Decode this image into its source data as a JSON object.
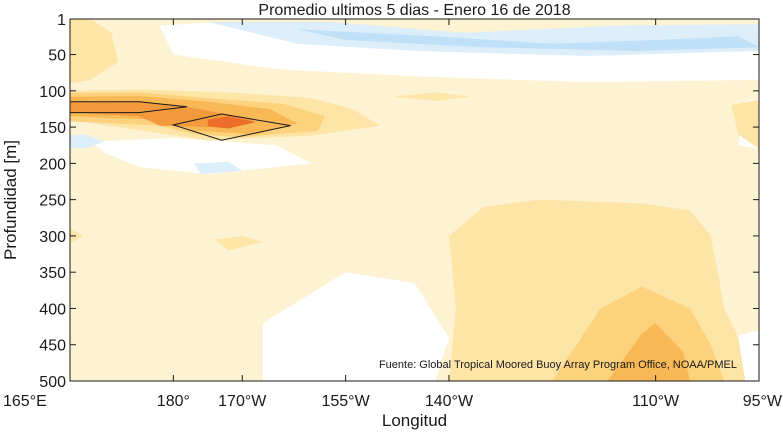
{
  "chart_data": {
    "type": "heatmap",
    "title": "Promedio ultimos 5 dias - Enero 16 de 2018",
    "xlabel": "Longitud",
    "ylabel": "Profundidad [m]",
    "source": "Fuente: Global Tropical Moored Buoy Array Program Office, NOAA/PMEL",
    "x_ticks": [
      {
        "lon": 165,
        "label": "165°E"
      },
      {
        "lon": 180,
        "label": "180°"
      },
      {
        "lon": 190,
        "label": "170°W"
      },
      {
        "lon": 205,
        "label": "155°W"
      },
      {
        "lon": 220,
        "label": "140°W"
      },
      {
        "lon": 250,
        "label": "110°W"
      },
      {
        "lon": 265,
        "label": "95°W"
      }
    ],
    "y_ticks": [
      {
        "depth": 1,
        "label": "1"
      },
      {
        "depth": 50,
        "label": "50"
      },
      {
        "depth": 100,
        "label": "100"
      },
      {
        "depth": 150,
        "label": "150"
      },
      {
        "depth": 200,
        "label": "200"
      },
      {
        "depth": 250,
        "label": "250"
      },
      {
        "depth": 300,
        "label": "300"
      },
      {
        "depth": 350,
        "label": "350"
      },
      {
        "depth": 400,
        "label": "400"
      },
      {
        "depth": 450,
        "label": "450"
      },
      {
        "depth": 500,
        "label": "500"
      }
    ],
    "xlim": [
      165,
      265
    ],
    "ylim": [
      500,
      1
    ],
    "levels": [
      {
        "value": -2,
        "color": "#bfe0f7"
      },
      {
        "value": -1,
        "color": "#ddeefb"
      },
      {
        "value": 0,
        "color": "#ffffff"
      },
      {
        "value": 1,
        "color": "#fdf2d2"
      },
      {
        "value": 2,
        "color": "#fde5a8"
      },
      {
        "value": 3,
        "color": "#fcd27c"
      },
      {
        "value": 4,
        "color": "#f9b856"
      },
      {
        "value": 5,
        "color": "#f39a3c"
      },
      {
        "value": 6,
        "color": "#ec6e2b"
      }
    ],
    "regions": [
      {
        "level": 1,
        "points": [
          [
            165,
            1
          ],
          [
            265,
            1
          ],
          [
            265,
            500
          ],
          [
            165,
            500
          ]
        ]
      },
      {
        "level": 0,
        "points": [
          [
            178,
            10
          ],
          [
            187,
            5
          ],
          [
            205,
            15
          ],
          [
            220,
            30
          ],
          [
            240,
            22
          ],
          [
            258,
            12
          ],
          [
            265,
            15
          ],
          [
            265,
            85
          ],
          [
            240,
            88
          ],
          [
            215,
            80
          ],
          [
            195,
            70
          ],
          [
            180,
            50
          ]
        ]
      },
      {
        "level": -1,
        "points": [
          [
            185,
            5
          ],
          [
            203,
            5
          ],
          [
            222,
            20
          ],
          [
            245,
            10
          ],
          [
            265,
            8
          ],
          [
            265,
            45
          ],
          [
            240,
            52
          ],
          [
            215,
            45
          ],
          [
            198,
            35
          ]
        ]
      },
      {
        "level": -2,
        "points": [
          [
            198,
            15
          ],
          [
            218,
            25
          ],
          [
            235,
            35
          ],
          [
            250,
            30
          ],
          [
            262,
            25
          ],
          [
            265,
            40
          ],
          [
            248,
            45
          ],
          [
            225,
            40
          ],
          [
            205,
            30
          ]
        ]
      },
      {
        "level": 0,
        "points": [
          [
            263,
            115
          ],
          [
            265,
            110
          ],
          [
            265,
            180
          ],
          [
            262,
            175
          ]
        ]
      },
      {
        "level": 0,
        "points": [
          [
            168,
            170
          ],
          [
            180,
            165
          ],
          [
            195,
            175
          ],
          [
            200,
            200
          ],
          [
            185,
            215
          ],
          [
            175,
            205
          ],
          [
            170,
            185
          ]
        ]
      },
      {
        "level": -1,
        "points": [
          [
            167,
            160
          ],
          [
            170,
            170
          ],
          [
            167,
            180
          ],
          [
            165,
            178
          ],
          [
            165,
            162
          ]
        ]
      },
      {
        "level": -1,
        "points": [
          [
            183,
            200
          ],
          [
            188,
            198
          ],
          [
            190,
            210
          ],
          [
            184,
            215
          ]
        ]
      },
      {
        "level": 0,
        "points": [
          [
            193,
            420
          ],
          [
            205,
            350
          ],
          [
            215,
            365
          ],
          [
            220,
            440
          ],
          [
            218,
            500
          ],
          [
            193,
            500
          ]
        ]
      },
      {
        "level": 0,
        "points": [
          [
            261,
            440
          ],
          [
            265,
            430
          ],
          [
            265,
            500
          ],
          [
            260,
            500
          ]
        ]
      },
      {
        "level": 2,
        "points": [
          [
            165,
            1
          ],
          [
            168,
            1
          ],
          [
            171,
            20
          ],
          [
            172,
            60
          ],
          [
            168,
            85
          ],
          [
            165,
            90
          ]
        ]
      },
      {
        "level": 2,
        "points": [
          [
            165,
            100
          ],
          [
            175,
            98
          ],
          [
            190,
            103
          ],
          [
            200,
            110
          ],
          [
            206,
            125
          ],
          [
            210,
            148
          ],
          [
            200,
            162
          ],
          [
            185,
            168
          ],
          [
            172,
            150
          ],
          [
            165,
            140
          ]
        ]
      },
      {
        "level": 2,
        "points": [
          [
            212,
            108
          ],
          [
            218,
            102
          ],
          [
            223,
            108
          ],
          [
            218,
            114
          ]
        ]
      },
      {
        "level": 2,
        "points": [
          [
            261,
            120
          ],
          [
            265,
            112
          ],
          [
            265,
            180
          ],
          [
            262,
            160
          ]
        ]
      },
      {
        "level": 2,
        "points": [
          [
            165,
            290
          ],
          [
            167,
            300
          ],
          [
            165,
            310
          ]
        ]
      },
      {
        "level": 2,
        "points": [
          [
            186,
            305
          ],
          [
            190,
            300
          ],
          [
            193,
            308
          ],
          [
            188,
            320
          ]
        ]
      },
      {
        "level": 2,
        "points": [
          [
            220,
            300
          ],
          [
            225,
            260
          ],
          [
            233,
            250
          ],
          [
            248,
            255
          ],
          [
            255,
            265
          ],
          [
            258,
            300
          ],
          [
            260,
            400
          ],
          [
            262,
            440
          ],
          [
            263,
            500
          ],
          [
            220,
            500
          ],
          [
            221,
            400
          ]
        ]
      },
      {
        "level": 3,
        "points": [
          [
            165,
            103
          ],
          [
            175,
            102
          ],
          [
            185,
            110
          ],
          [
            196,
            118
          ],
          [
            202,
            135
          ],
          [
            201,
            155
          ],
          [
            190,
            164
          ],
          [
            183,
            160
          ],
          [
            178,
            148
          ],
          [
            165,
            142
          ]
        ]
      },
      {
        "level": 3,
        "points": [
          [
            235,
            500
          ],
          [
            242,
            400
          ],
          [
            248,
            370
          ],
          [
            255,
            400
          ],
          [
            258,
            450
          ],
          [
            260,
            500
          ]
        ]
      },
      {
        "level": 4,
        "points": [
          [
            165,
            108
          ],
          [
            175,
            107
          ],
          [
            185,
            115
          ],
          [
            194,
            125
          ],
          [
            198,
            145
          ],
          [
            192,
            160
          ],
          [
            183,
            155
          ],
          [
            178,
            140
          ],
          [
            165,
            135
          ]
        ]
      },
      {
        "level": 4,
        "points": [
          [
            243,
            500
          ],
          [
            248,
            435
          ],
          [
            250,
            420
          ],
          [
            254,
            460
          ],
          [
            255,
            500
          ]
        ]
      },
      {
        "level": 5,
        "points": [
          [
            165,
            115
          ],
          [
            175,
            114
          ],
          [
            182,
            122
          ],
          [
            192,
            140
          ],
          [
            186,
            150
          ],
          [
            178,
            148
          ],
          [
            175,
            135
          ],
          [
            165,
            130
          ]
        ]
      },
      {
        "level": 6,
        "points": [
          [
            185,
            140
          ],
          [
            188,
            135
          ],
          [
            192,
            143
          ],
          [
            188,
            152
          ],
          [
            185,
            149
          ]
        ]
      }
    ],
    "contours": [
      [
        [
          165,
          115
        ],
        [
          175,
          115
        ],
        [
          182,
          122
        ],
        [
          175,
          130
        ],
        [
          165,
          130
        ]
      ],
      [
        [
          180,
          147
        ],
        [
          187,
          132
        ],
        [
          197,
          148
        ],
        [
          187,
          168
        ]
      ]
    ]
  }
}
